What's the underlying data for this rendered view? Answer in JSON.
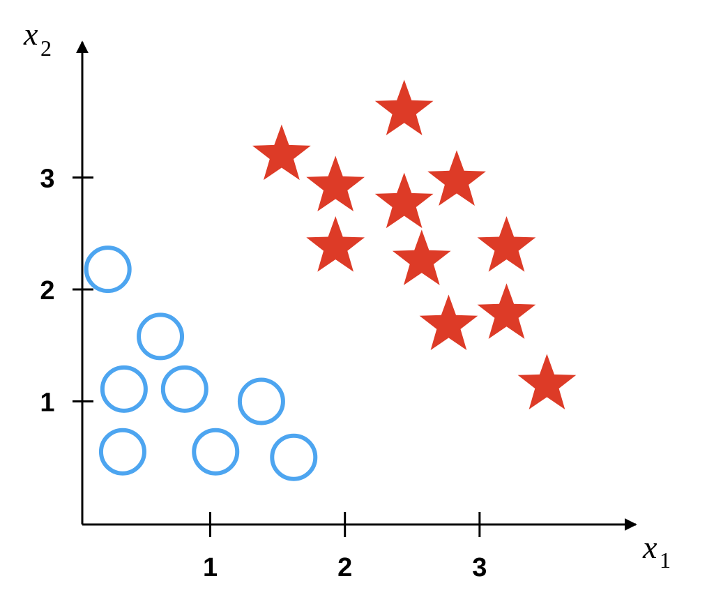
{
  "chart_data": {
    "type": "scatter",
    "title": "",
    "xlabel": {
      "var": "x",
      "sub": "1"
    },
    "ylabel": {
      "var": "x",
      "sub": "2"
    },
    "x_ticks": [
      {
        "value": 1,
        "label": "1"
      },
      {
        "value": 2,
        "label": "2"
      },
      {
        "value": 3,
        "label": "3"
      }
    ],
    "y_ticks": [
      {
        "value": 1,
        "label": "1"
      },
      {
        "value": 2,
        "label": "2"
      },
      {
        "value": 3,
        "label": "3"
      }
    ],
    "xlim": [
      0.05,
      4.15
    ],
    "ylim": [
      -0.1,
      4.2
    ],
    "grid": false,
    "legend": "none",
    "series": [
      {
        "marker": "circle-hollow",
        "color": "#4da5f0",
        "points": [
          [
            0.24,
            2.18
          ],
          [
            0.63,
            1.58
          ],
          [
            0.36,
            1.11
          ],
          [
            0.81,
            1.11
          ],
          [
            1.38,
            1.0
          ],
          [
            0.35,
            0.55
          ],
          [
            1.04,
            0.55
          ],
          [
            1.62,
            0.5
          ]
        ]
      },
      {
        "marker": "star-filled",
        "color": "#dd3b27",
        "points": [
          [
            2.44,
            3.6
          ],
          [
            1.53,
            3.2
          ],
          [
            1.93,
            2.92
          ],
          [
            2.83,
            2.97
          ],
          [
            2.44,
            2.77
          ],
          [
            1.93,
            2.38
          ],
          [
            2.57,
            2.26
          ],
          [
            3.2,
            2.38
          ],
          [
            2.77,
            1.68
          ],
          [
            3.2,
            1.78
          ],
          [
            3.5,
            1.15
          ]
        ]
      }
    ]
  }
}
